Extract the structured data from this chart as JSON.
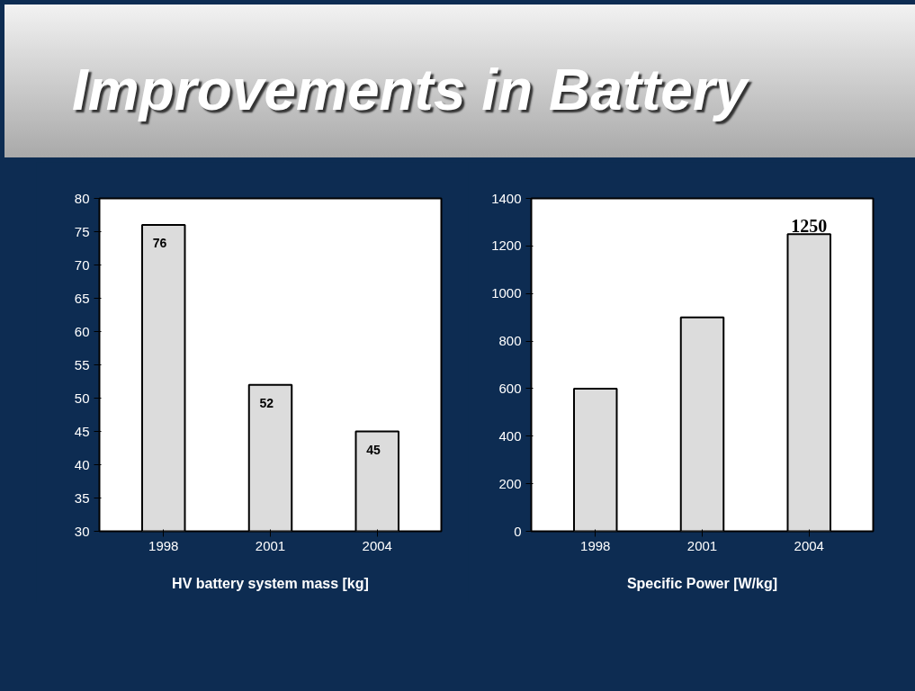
{
  "chart_data": [
    {
      "type": "bar",
      "title": "Improvements in Battery",
      "xlabel": "HV battery system mass [kg]",
      "categories": [
        "1998",
        "2001",
        "2004"
      ],
      "values": [
        76,
        52,
        45
      ],
      "color": "#dcdcdc",
      "ylim": [
        30,
        80
      ],
      "yticks": [
        30,
        35,
        40,
        45,
        50,
        55,
        60,
        65,
        70,
        75,
        80
      ],
      "data_labels": true,
      "grid": false
    },
    {
      "type": "bar",
      "xlabel": "Specific Power [W/kg]",
      "categories": [
        "1998",
        "2001",
        "2004"
      ],
      "values": [
        600,
        900,
        1250
      ],
      "value_labels": [
        null,
        null,
        "1250"
      ],
      "color": "#dcdcdc",
      "ylim": [
        0,
        1400
      ],
      "yticks": [
        0,
        200,
        400,
        600,
        800,
        1000,
        1200,
        1400
      ],
      "grid": false
    }
  ]
}
